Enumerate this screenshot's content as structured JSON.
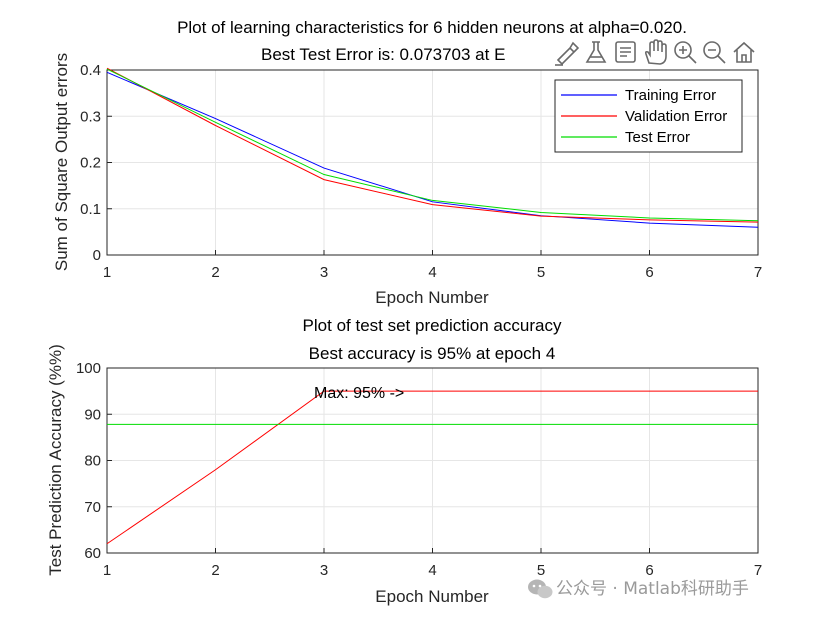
{
  "chart_data": [
    {
      "type": "line",
      "title": [
        "Plot of learning characteristics for 6 hidden neurons at alpha=0.020.",
        "Best Test Error is: 0.073703 at E"
      ],
      "xlabel": "Epoch Number",
      "ylabel": "Sum of Square Output errors",
      "xlim": [
        1,
        7
      ],
      "ylim": [
        0,
        0.4
      ],
      "xticks": [
        "1",
        "2",
        "3",
        "4",
        "5",
        "6",
        "7"
      ],
      "yticks": [
        "0",
        "0.1",
        "0.2",
        "0.3",
        "0.4"
      ],
      "grid": true,
      "legend_position": "top-right",
      "x": [
        1,
        2,
        3,
        4,
        5,
        6,
        7
      ],
      "series": [
        {
          "name": "Training Error",
          "color": "#0000ff",
          "values": [
            0.395,
            0.295,
            0.188,
            0.115,
            0.085,
            0.069,
            0.06
          ]
        },
        {
          "name": "Validation Error",
          "color": "#ff0000",
          "values": [
            0.404,
            0.28,
            0.163,
            0.109,
            0.084,
            0.076,
            0.071
          ]
        },
        {
          "name": "Test Error",
          "color": "#00dd00",
          "values": [
            0.402,
            0.287,
            0.174,
            0.118,
            0.092,
            0.08,
            0.074
          ]
        }
      ]
    },
    {
      "type": "line",
      "title": [
        "Plot of test set prediction accuracy",
        "Best accuracy is 95% at epoch 4"
      ],
      "xlabel": "Epoch Number",
      "ylabel": "Test Prediction Accuracy (%%)",
      "xlim": [
        1,
        7
      ],
      "ylim": [
        60,
        100
      ],
      "xticks": [
        "1",
        "2",
        "3",
        "4",
        "5",
        "6",
        "7"
      ],
      "yticks": [
        "60",
        "70",
        "80",
        "90",
        "100"
      ],
      "grid": true,
      "x": [
        1,
        2,
        3,
        4,
        5,
        6,
        7
      ],
      "series": [
        {
          "color": "#ff0000",
          "values": [
            62,
            78,
            95,
            95,
            95,
            95,
            95
          ]
        },
        {
          "color": "#00dd00",
          "values": [
            87.8,
            87.8,
            87.8,
            87.8,
            87.8,
            87.8,
            87.8
          ]
        }
      ],
      "annotation": {
        "text": "Max: 95% ->",
        "x": 3,
        "y": 95
      }
    }
  ],
  "toolbar": {
    "icons": [
      "brush-icon",
      "flask-icon",
      "data-tips-icon",
      "pan-hand-icon",
      "zoom-in-icon",
      "zoom-out-icon",
      "home-icon"
    ]
  },
  "watermark": {
    "text": "公众号 · Matlab科研助手"
  }
}
